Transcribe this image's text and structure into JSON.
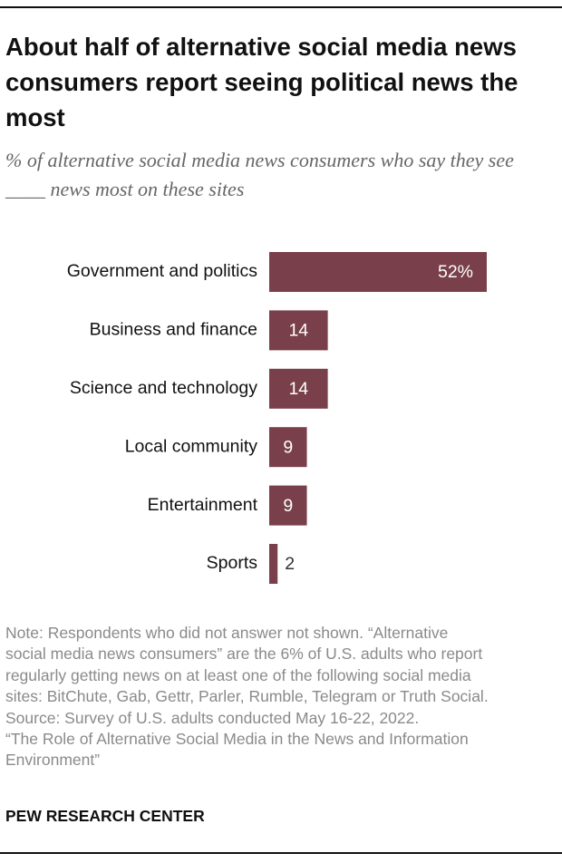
{
  "chart_data": {
    "type": "bar",
    "orientation": "horizontal",
    "title": "About half of alternative social media news consumers report seeing political news the most",
    "subtitle": "% of alternative social media news consumers who say they see ____ news most on these sites",
    "categories": [
      "Government and politics",
      "Business and finance",
      "Science and technology",
      "Local community",
      "Entertainment",
      "Sports"
    ],
    "values": [
      52,
      14,
      14,
      9,
      9,
      2
    ],
    "value_labels": [
      "52%",
      "14",
      "14",
      "9",
      "9",
      "2"
    ],
    "color": "#793f4a",
    "note": [
      "Note: Respondents who did not answer not shown. “Alternative",
      "social media news consumers” are the 6% of U.S. adults who report",
      "regularly getting news on at least one of the following social media",
      "sites: BitChute, Gab, Gettr, Parler, Rumble, Telegram or Truth Social.",
      "Source: Survey of U.S. adults conducted May 16-22, 2022.",
      "“The Role of Alternative Social Media in the News and Information",
      "Environment”"
    ],
    "source": "PEW RESEARCH CENTER"
  }
}
